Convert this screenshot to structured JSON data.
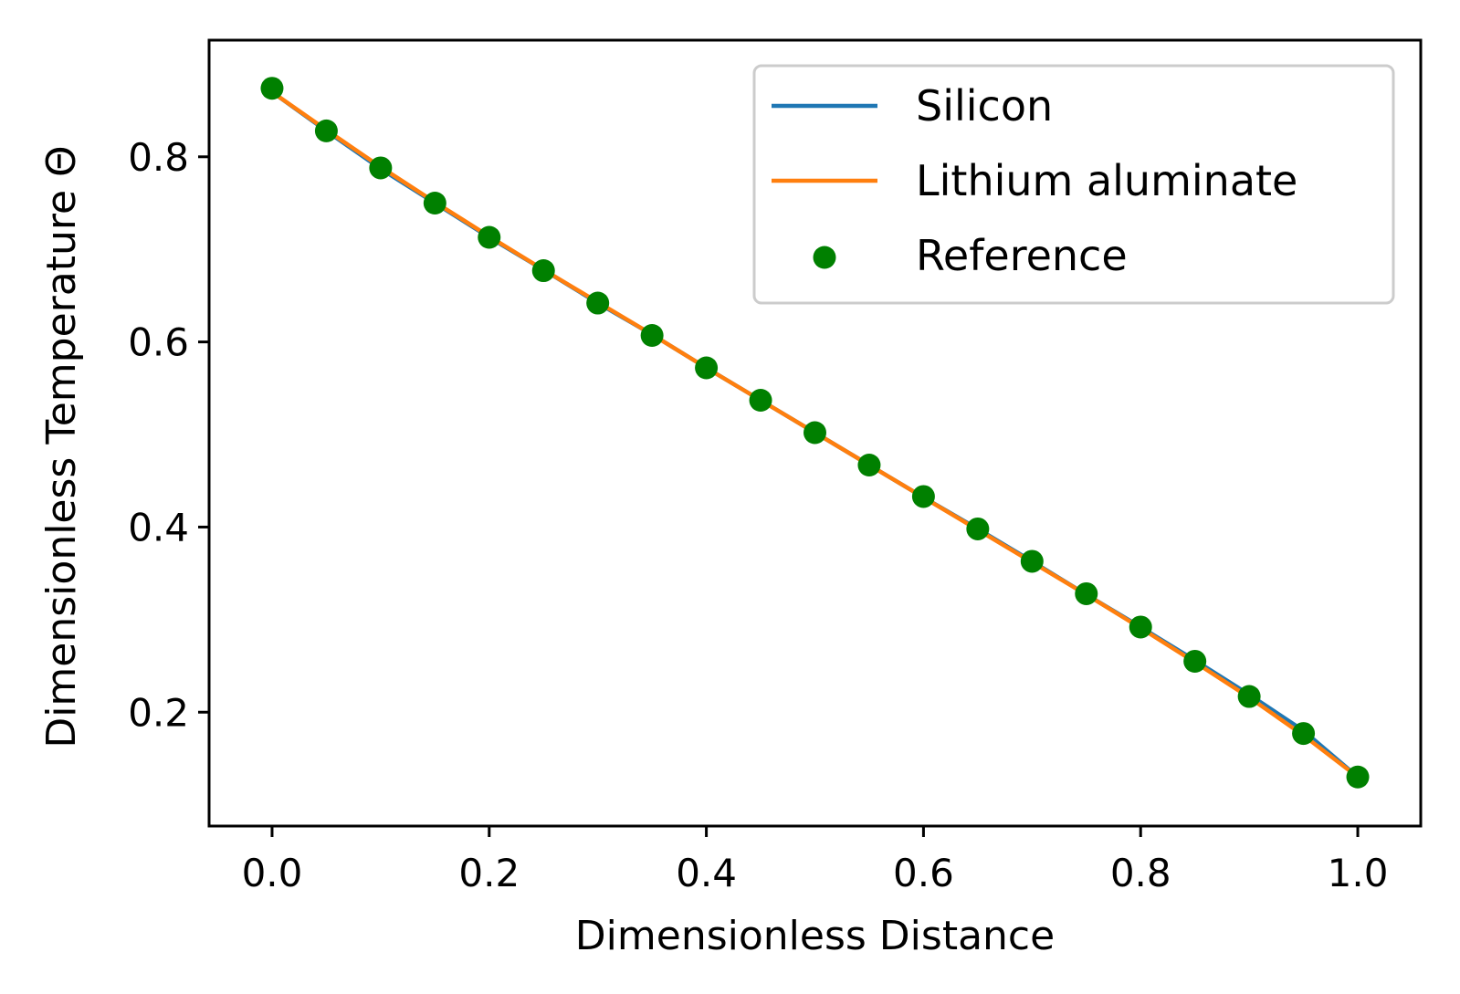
{
  "chart_data": {
    "type": "line",
    "xlabel": "Dimensionless Distance",
    "ylabel": "Dimensionless Temperature Θ",
    "xlim": [
      -0.058,
      1.058
    ],
    "ylim": [
      0.077,
      0.926
    ],
    "xticks": [
      0.0,
      0.2,
      0.4,
      0.6,
      0.8,
      1.0
    ],
    "xtick_labels": [
      "0.0",
      "0.2",
      "0.4",
      "0.6",
      "0.8",
      "1.0"
    ],
    "yticks": [
      0.2,
      0.4,
      0.6,
      0.8
    ],
    "ytick_labels": [
      "0.2",
      "0.4",
      "0.6",
      "0.8"
    ],
    "grid": false,
    "legend_position": "top-right",
    "series": [
      {
        "name": "Silicon",
        "kind": "line",
        "color": "#1f77b4",
        "x": [
          0.0,
          0.05,
          0.1,
          0.15,
          0.2,
          0.25,
          0.3,
          0.35,
          0.4,
          0.45,
          0.5,
          0.55,
          0.6,
          0.65,
          0.7,
          0.75,
          0.8,
          0.85,
          0.9,
          0.95,
          1.0
        ],
        "y": [
          0.87,
          0.828,
          0.787,
          0.75,
          0.713,
          0.678,
          0.642,
          0.608,
          0.572,
          0.537,
          0.502,
          0.467,
          0.432,
          0.398,
          0.363,
          0.327,
          0.292,
          0.256,
          0.219,
          0.18,
          0.13
        ]
      },
      {
        "name": "Lithium aluminate",
        "kind": "line",
        "color": "#ff7f0e",
        "x": [
          0.0,
          0.05,
          0.1,
          0.15,
          0.2,
          0.25,
          0.3,
          0.35,
          0.4,
          0.45,
          0.5,
          0.55,
          0.6,
          0.65,
          0.7,
          0.75,
          0.8,
          0.85,
          0.9,
          0.95,
          1.0
        ],
        "y": [
          0.87,
          0.829,
          0.789,
          0.751,
          0.714,
          0.678,
          0.643,
          0.608,
          0.572,
          0.537,
          0.502,
          0.467,
          0.432,
          0.397,
          0.362,
          0.327,
          0.291,
          0.254,
          0.216,
          0.175,
          0.13
        ]
      },
      {
        "name": "Reference",
        "kind": "scatter",
        "color": "#008000",
        "x": [
          0.0,
          0.05,
          0.1,
          0.15,
          0.2,
          0.25,
          0.3,
          0.35,
          0.4,
          0.45,
          0.5,
          0.55,
          0.6,
          0.65,
          0.7,
          0.75,
          0.8,
          0.85,
          0.9,
          0.95,
          1.0
        ],
        "y": [
          0.874,
          0.828,
          0.788,
          0.75,
          0.713,
          0.677,
          0.642,
          0.607,
          0.572,
          0.537,
          0.502,
          0.467,
          0.433,
          0.398,
          0.363,
          0.328,
          0.292,
          0.255,
          0.217,
          0.177,
          0.13
        ]
      }
    ]
  }
}
